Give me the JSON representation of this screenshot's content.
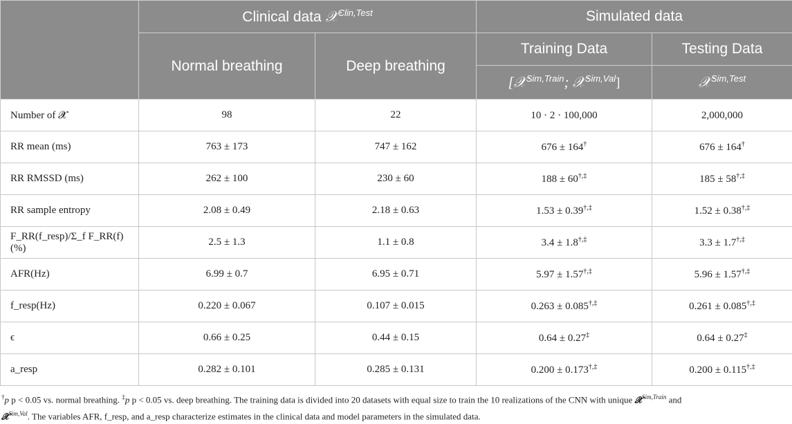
{
  "header": {
    "clinical_group": "Clinical data",
    "clinical_symbol": "𝒳",
    "clinical_sup": "Clin,Test",
    "simulated_group": "Simulated data",
    "normal": "Normal breathing",
    "deep": "Deep breathing",
    "training": "Training Data",
    "testing": "Testing Data",
    "training_sym": "[𝒳",
    "training_sup1": "Sim,Train",
    "training_sep": "; 𝒳",
    "training_sup2": "Sim,Val",
    "training_close": "]",
    "testing_sym": "𝒳",
    "testing_sup": "Sim,Test"
  },
  "rows": [
    {
      "label": "Number of 𝓧",
      "normal": "98",
      "deep": "22",
      "train": "10 · 2 · 100,000",
      "train_sup": "",
      "test": "2,000,000",
      "test_sup": ""
    },
    {
      "label": "RR mean (ms)",
      "normal": "763 ± 173",
      "deep": "747 ± 162",
      "train": "676 ± 164",
      "train_sup": "†",
      "test": "676 ± 164",
      "test_sup": "†"
    },
    {
      "label": "RR RMSSD (ms)",
      "normal": "262 ± 100",
      "deep": "230 ± 60",
      "train": "188 ± 60",
      "train_sup": "†,‡",
      "test": "185 ± 58",
      "test_sup": "†,‡"
    },
    {
      "label": "RR sample entropy",
      "normal": "2.08 ± 0.49",
      "deep": "2.18 ± 0.63",
      "train": "1.53 ± 0.39",
      "train_sup": "†,‡",
      "test": "1.52 ± 0.38",
      "test_sup": "†,‡"
    },
    {
      "label": "F_RR(f_resp)/Σ_f F_RR(f)(%)",
      "normal": "2.5 ± 1.3",
      "deep": "1.1 ± 0.8",
      "train": "3.4 ± 1.8",
      "train_sup": "†,‡",
      "test": "3.3 ± 1.7",
      "test_sup": "†,‡"
    },
    {
      "label": "AFR(Hz)",
      "normal": "6.99 ± 0.7",
      "deep": "6.95 ± 0.71",
      "train": "5.97 ± 1.57",
      "train_sup": "†,‡",
      "test": "5.96 ± 1.57",
      "test_sup": "†,‡"
    },
    {
      "label": "f_resp(Hz)",
      "normal": "0.220 ± 0.067",
      "deep": "0.107 ± 0.015",
      "train": "0.263 ± 0.085",
      "train_sup": "†,‡",
      "test": "0.261 ± 0.085",
      "test_sup": "†,‡"
    },
    {
      "label": "ϵ",
      "normal": "0.66 ± 0.25",
      "deep": "0.44 ± 0.15",
      "train": "0.64 ± 0.27",
      "train_sup": "‡",
      "test": "0.64 ± 0.27",
      "test_sup": "‡"
    },
    {
      "label": "a_resp",
      "normal": "0.282 ± 0.101",
      "deep": "0.285 ± 0.131",
      "train": "0.200 ± 0.173",
      "train_sup": "†,‡",
      "test": "0.200 ± 0.115",
      "test_sup": "†,‡"
    }
  ],
  "footnote": {
    "line1_a": "p < 0.05 vs. normal breathing.",
    "line1_b": "p < 0.05 vs. deep breathing. The training data is divided into 20 datasets with equal size to train the 10 realizations of the CNN with unique",
    "line1_sym": "𝓧",
    "line1_sup": "Sim,Train",
    "line1_and": "and",
    "line2_sym": "𝓧",
    "line2_sup": "Sim,Val",
    "line2_text": ". The variables AFR, f_resp, and a_resp characterize estimates in the clinical data and model parameters in the simulated data."
  }
}
